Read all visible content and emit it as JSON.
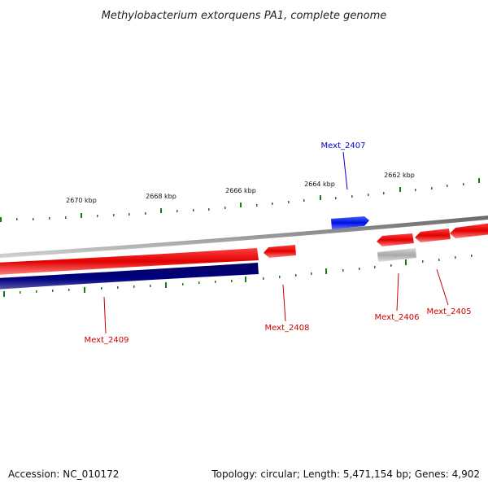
{
  "title": "Methylobacterium extorquens PA1, complete genome",
  "footer": {
    "accession": "Accession: NC_010172",
    "stats": "Topology: circular; Length: 5,471,154 bp; Genes: 4,902"
  },
  "colors": {
    "forward_gene": "#e00000",
    "reverse_gene": "#000080",
    "highlight_gene": "#0000ee",
    "pseudo_gene": "#b0b0b0",
    "backbone": "#808080",
    "tick": "#1a7a1a"
  },
  "scale_labels": [
    "2670 kbp",
    "2668 kbp",
    "2666 kbp",
    "2664 kbp",
    "2662 kbp"
  ],
  "gene_labels": [
    {
      "id": "Mext_2407",
      "color": "#0000cc"
    },
    {
      "id": "Mext_2409",
      "color": "#cc0000"
    },
    {
      "id": "Mext_2408",
      "color": "#cc0000"
    },
    {
      "id": "Mext_2406",
      "color": "#cc0000"
    },
    {
      "id": "Mext_2405",
      "color": "#cc0000"
    }
  ]
}
